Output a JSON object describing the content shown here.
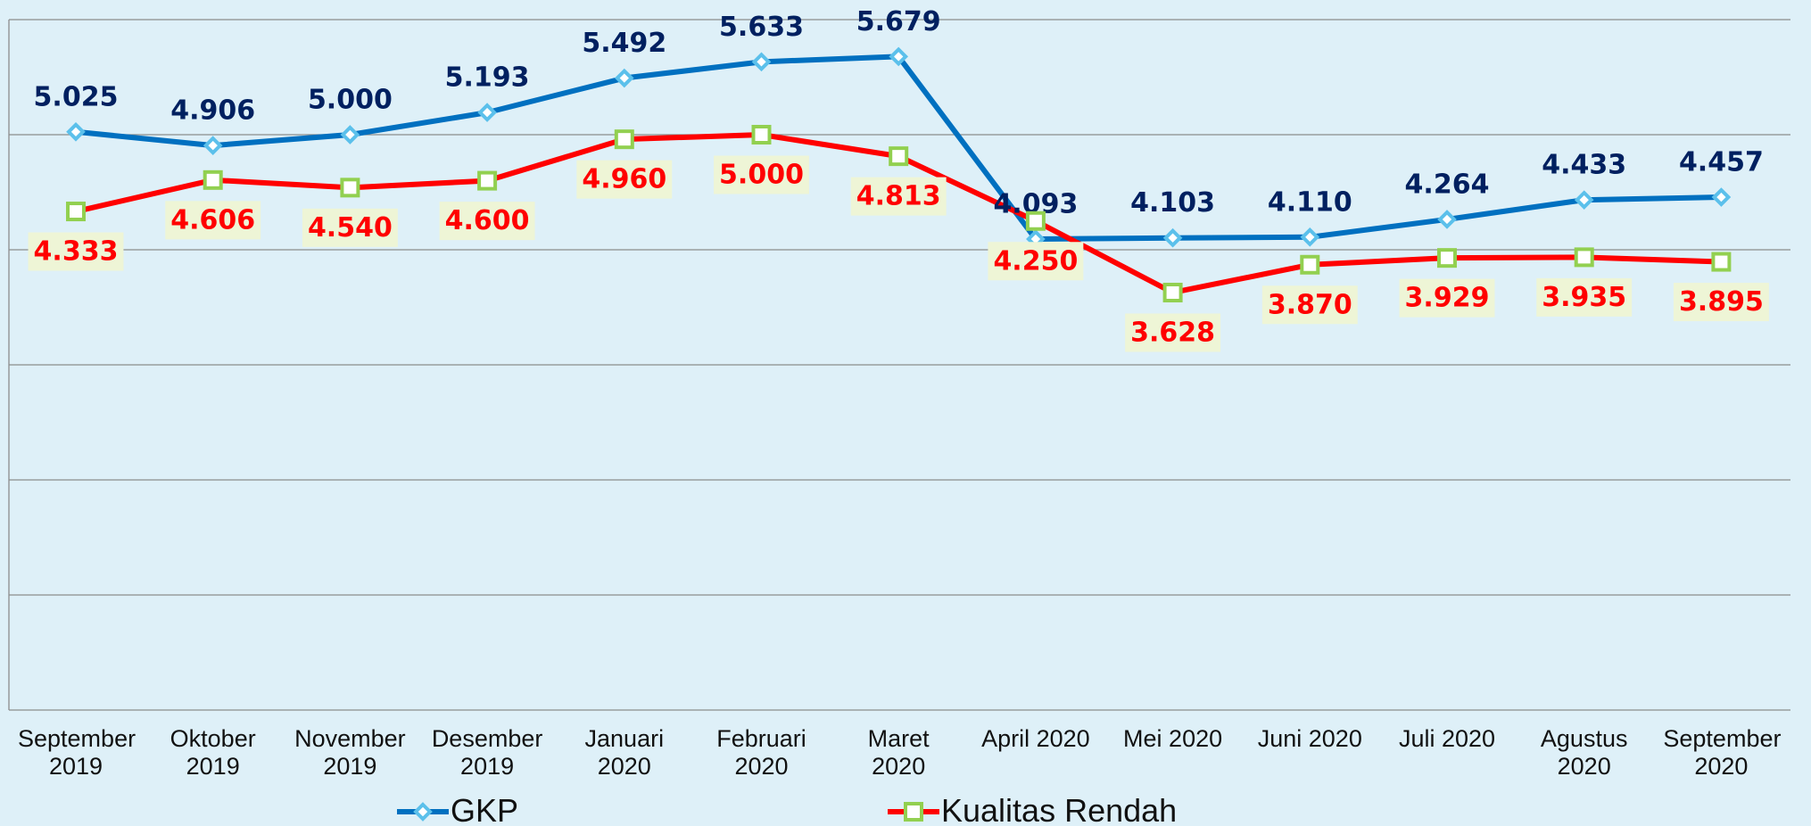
{
  "chart_data": {
    "type": "line",
    "categories": [
      "September 2019",
      "Oktober 2019",
      "November 2019",
      "Desember 2019",
      "Januari 2020",
      "Februari 2020",
      "Maret 2020",
      "April 2020",
      "Mei 2020",
      "Juni 2020",
      "Juli 2020",
      "Agustus 2020",
      "September 2020"
    ],
    "series": [
      {
        "name": "GKP",
        "color": "#0070c0",
        "marker_color": "#5bc0eb",
        "values": [
          5025,
          4906,
          5000,
          5193,
          5492,
          5633,
          5679,
          4093,
          4103,
          4110,
          4264,
          4433,
          4457
        ],
        "value_labels": [
          "5.025",
          "4.906",
          "5.000",
          "5.193",
          "5.492",
          "5.633",
          "5.679",
          "4.093",
          "4.103",
          "4.110",
          "4.264",
          "4.433",
          "4.457"
        ],
        "label_color": "#002060"
      },
      {
        "name": "Kualitas Rendah",
        "color": "#ff0000",
        "marker_color": "#92d050",
        "values": [
          4333,
          4606,
          4540,
          4600,
          4960,
          5000,
          4813,
          4250,
          3628,
          3870,
          3929,
          3935,
          3895
        ],
        "value_labels": [
          "4.333",
          "4.606",
          "4.540",
          "4.600",
          "4.960",
          "5.000",
          "4.813",
          "4.250",
          "3.628",
          "3.870",
          "3.929",
          "3.935",
          "3.895"
        ],
        "label_color": "#ff0000"
      }
    ],
    "ylim": [
      0,
      6000
    ],
    "yticks": [
      0,
      1000,
      2000,
      3000,
      4000,
      5000,
      6000
    ],
    "grid": true,
    "legend": "bottom"
  }
}
